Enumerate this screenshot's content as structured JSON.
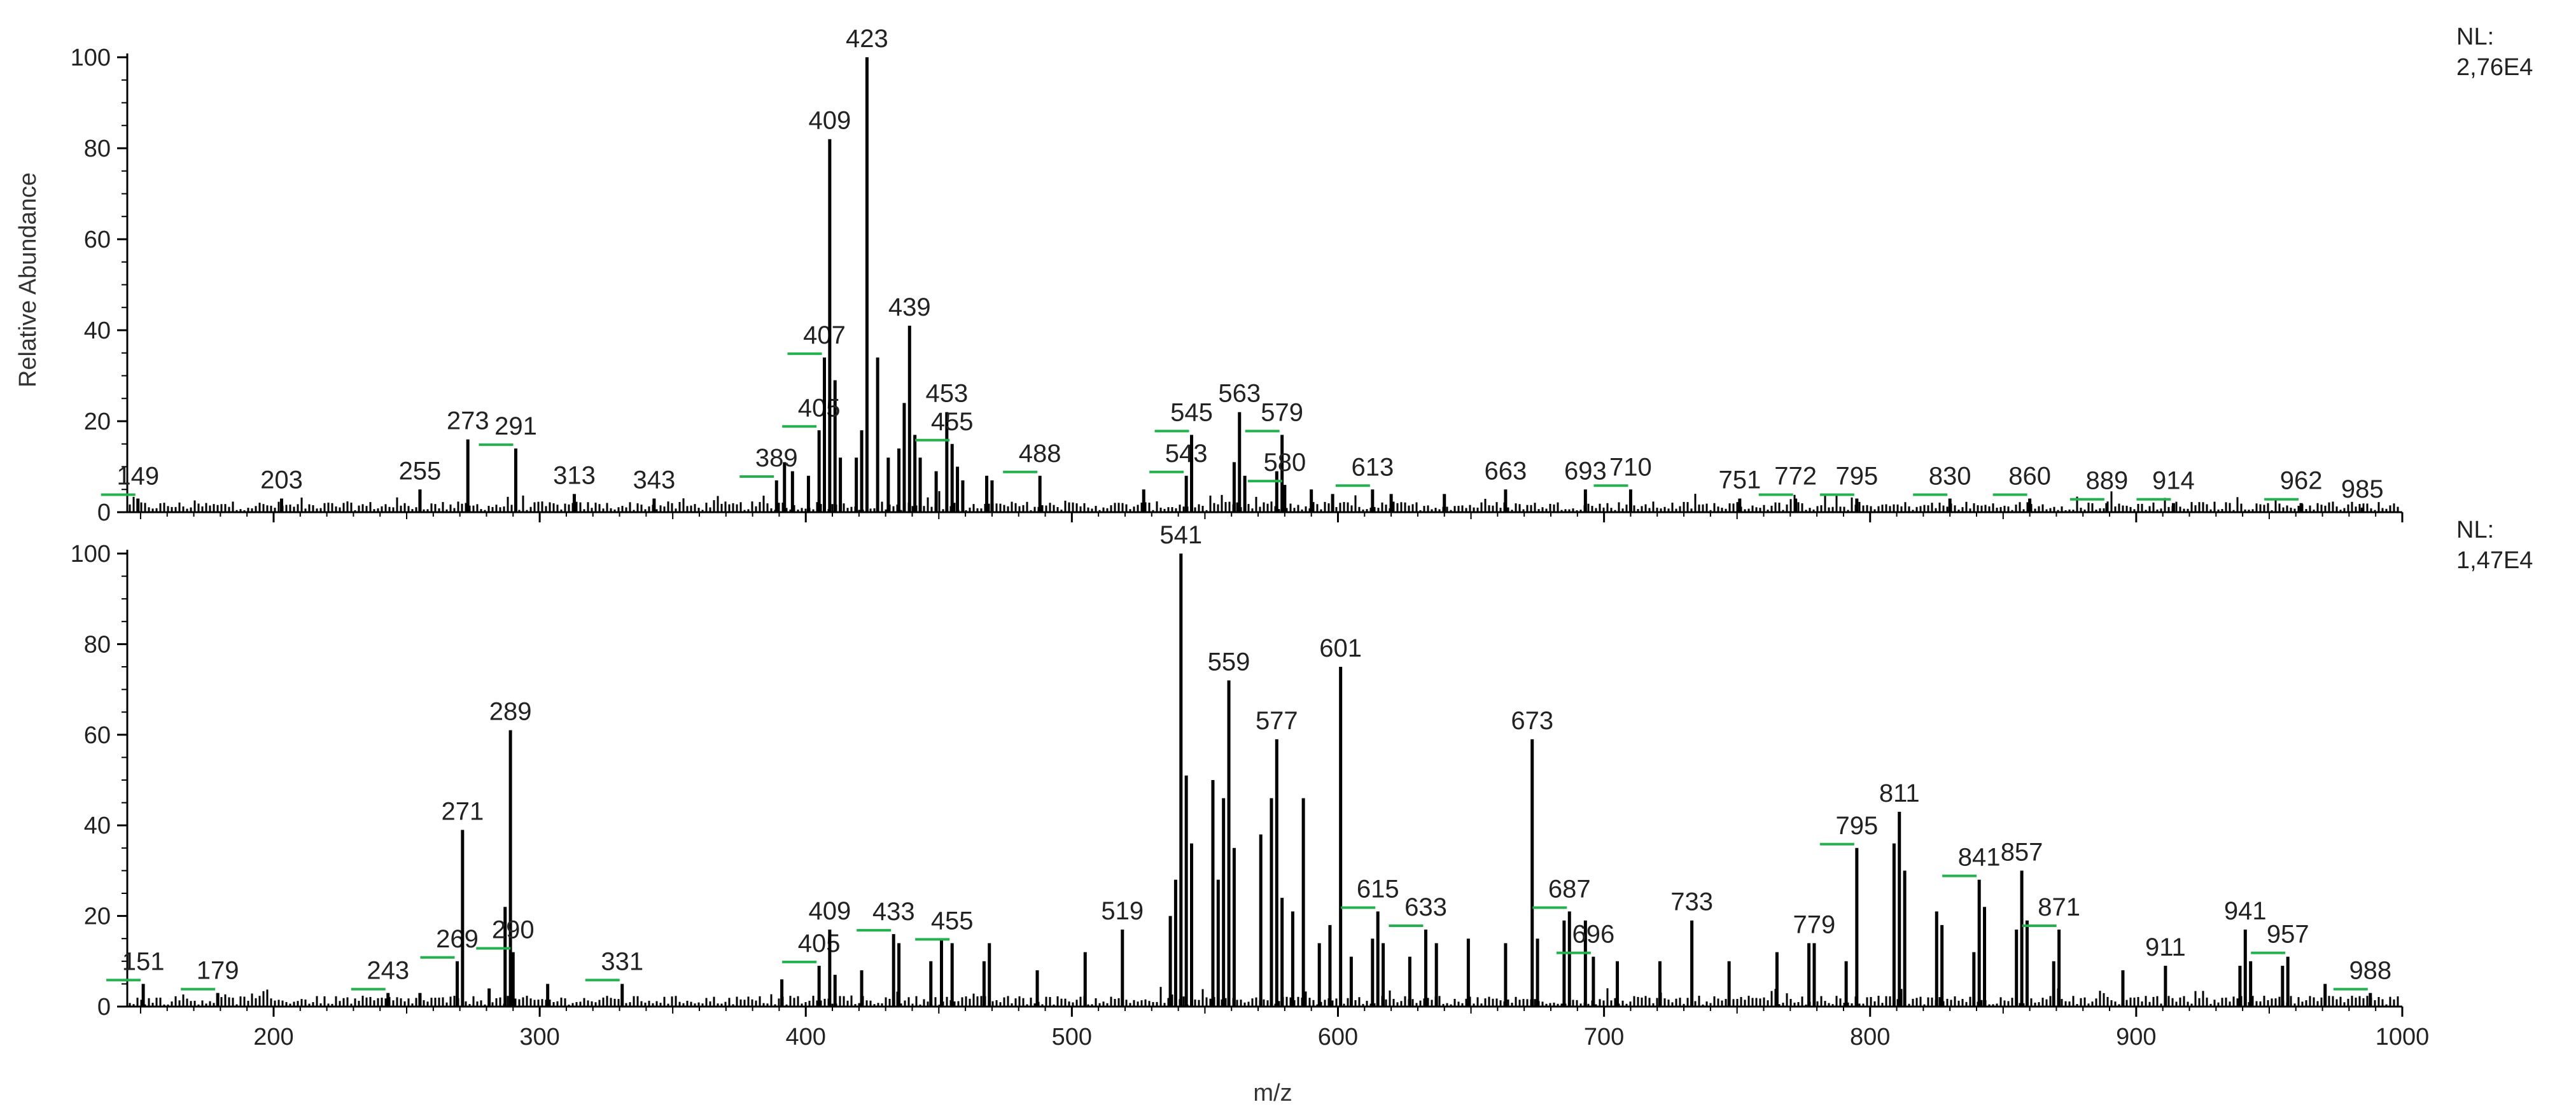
{
  "colors": {
    "sticks": "#000000",
    "label_flag": "#22b14c",
    "background": "#ffffff"
  },
  "chart_data": [
    {
      "type": "bar",
      "panel": "top",
      "ylabel": "Relative Abundance",
      "xlim": [
        145,
        1000
      ],
      "ylim": [
        0,
        100
      ],
      "nl_label": "NL:",
      "nl_value": "2,76E4",
      "y_ticks": [
        0,
        20,
        40,
        60,
        80,
        100
      ],
      "peaks": [
        {
          "x": 149,
          "y": 3,
          "label": "149",
          "flag": true
        },
        {
          "x": 203,
          "y": 3,
          "label": "203"
        },
        {
          "x": 255,
          "y": 5,
          "label": "255"
        },
        {
          "x": 273,
          "y": 16,
          "label": "273"
        },
        {
          "x": 291,
          "y": 14,
          "label": "291",
          "flag": true
        },
        {
          "x": 313,
          "y": 4,
          "label": "313"
        },
        {
          "x": 343,
          "y": 3,
          "label": "343"
        },
        {
          "x": 389,
          "y": 7,
          "label": "389",
          "flag": true
        },
        {
          "x": 405,
          "y": 18,
          "label": "405",
          "flag": true
        },
        {
          "x": 407,
          "y": 34,
          "label": "407",
          "flag": true
        },
        {
          "x": 409,
          "y": 82,
          "label": "409"
        },
        {
          "x": 423,
          "y": 100,
          "label": "423"
        },
        {
          "x": 439,
          "y": 41,
          "label": "439"
        },
        {
          "x": 453,
          "y": 22,
          "label": "453"
        },
        {
          "x": 455,
          "y": 15,
          "label": "455",
          "flag": true
        },
        {
          "x": 488,
          "y": 8,
          "label": "488",
          "flag": true
        },
        {
          "x": 543,
          "y": 8,
          "label": "543",
          "flag": true
        },
        {
          "x": 545,
          "y": 17,
          "label": "545",
          "flag": true
        },
        {
          "x": 563,
          "y": 22,
          "label": "563"
        },
        {
          "x": 579,
          "y": 17,
          "label": "579",
          "flag": true
        },
        {
          "x": 580,
          "y": 6,
          "label": "580",
          "flag": true
        },
        {
          "x": 613,
          "y": 5,
          "label": "613",
          "flag": true
        },
        {
          "x": 663,
          "y": 5,
          "label": "663"
        },
        {
          "x": 693,
          "y": 5,
          "label": "693"
        },
        {
          "x": 710,
          "y": 5,
          "label": "710",
          "flag": true
        },
        {
          "x": 751,
          "y": 3,
          "label": "751"
        },
        {
          "x": 772,
          "y": 3,
          "label": "772",
          "flag": true
        },
        {
          "x": 795,
          "y": 3,
          "label": "795",
          "flag": true
        },
        {
          "x": 830,
          "y": 3,
          "label": "830",
          "flag": true
        },
        {
          "x": 860,
          "y": 3,
          "label": "860",
          "flag": true
        },
        {
          "x": 889,
          "y": 2,
          "label": "889",
          "flag": true
        },
        {
          "x": 914,
          "y": 2,
          "label": "914",
          "flag": true
        },
        {
          "x": 962,
          "y": 2,
          "label": "962",
          "flag": true
        },
        {
          "x": 985,
          "y": 1,
          "label": "985"
        }
      ],
      "minor_peaks": [
        {
          "x": 392,
          "y": 11
        },
        {
          "x": 395,
          "y": 9
        },
        {
          "x": 401,
          "y": 8
        },
        {
          "x": 411,
          "y": 29
        },
        {
          "x": 413,
          "y": 12
        },
        {
          "x": 419,
          "y": 12
        },
        {
          "x": 421,
          "y": 18
        },
        {
          "x": 427,
          "y": 34
        },
        {
          "x": 431,
          "y": 12
        },
        {
          "x": 435,
          "y": 14
        },
        {
          "x": 437,
          "y": 24
        },
        {
          "x": 441,
          "y": 17
        },
        {
          "x": 443,
          "y": 12
        },
        {
          "x": 449,
          "y": 9
        },
        {
          "x": 457,
          "y": 10
        },
        {
          "x": 459,
          "y": 7
        },
        {
          "x": 468,
          "y": 8
        },
        {
          "x": 470,
          "y": 7
        },
        {
          "x": 527,
          "y": 5
        },
        {
          "x": 561,
          "y": 11
        },
        {
          "x": 565,
          "y": 8
        },
        {
          "x": 577,
          "y": 9
        },
        {
          "x": 590,
          "y": 5
        },
        {
          "x": 598,
          "y": 4
        },
        {
          "x": 620,
          "y": 4
        },
        {
          "x": 640,
          "y": 4
        }
      ]
    },
    {
      "type": "bar",
      "panel": "bottom",
      "xlabel": "m/z",
      "xlim": [
        145,
        1000
      ],
      "ylim": [
        0,
        100
      ],
      "nl_label": "NL:",
      "nl_value": "1,47E4",
      "x_ticks": [
        200,
        300,
        400,
        500,
        600,
        700,
        800,
        900,
        1000
      ],
      "y_ticks": [
        0,
        20,
        40,
        60,
        80,
        100
      ],
      "peaks": [
        {
          "x": 151,
          "y": 5,
          "label": "151",
          "flag": true
        },
        {
          "x": 179,
          "y": 3,
          "label": "179",
          "flag": true
        },
        {
          "x": 243,
          "y": 3,
          "label": "243",
          "flag": true
        },
        {
          "x": 269,
          "y": 10,
          "label": "269",
          "flag": true
        },
        {
          "x": 271,
          "y": 39,
          "label": "271"
        },
        {
          "x": 289,
          "y": 61,
          "label": "289"
        },
        {
          "x": 290,
          "y": 12,
          "label": "290",
          "flag": true
        },
        {
          "x": 331,
          "y": 5,
          "label": "331",
          "flag": true
        },
        {
          "x": 405,
          "y": 9,
          "label": "405",
          "flag": true
        },
        {
          "x": 409,
          "y": 17,
          "label": "409"
        },
        {
          "x": 433,
          "y": 16,
          "label": "433",
          "flag": true
        },
        {
          "x": 455,
          "y": 14,
          "label": "455",
          "flag": true
        },
        {
          "x": 519,
          "y": 17,
          "label": "519"
        },
        {
          "x": 541,
          "y": 100,
          "label": "541"
        },
        {
          "x": 559,
          "y": 72,
          "label": "559"
        },
        {
          "x": 577,
          "y": 59,
          "label": "577"
        },
        {
          "x": 601,
          "y": 75,
          "label": "601"
        },
        {
          "x": 615,
          "y": 21,
          "label": "615",
          "flag": true
        },
        {
          "x": 633,
          "y": 17,
          "label": "633",
          "flag": true
        },
        {
          "x": 673,
          "y": 59,
          "label": "673"
        },
        {
          "x": 687,
          "y": 21,
          "label": "687",
          "flag": true
        },
        {
          "x": 696,
          "y": 11,
          "label": "696",
          "flag": true
        },
        {
          "x": 733,
          "y": 19,
          "label": "733"
        },
        {
          "x": 779,
          "y": 14,
          "label": "779"
        },
        {
          "x": 795,
          "y": 35,
          "label": "795",
          "flag": true
        },
        {
          "x": 811,
          "y": 43,
          "label": "811"
        },
        {
          "x": 841,
          "y": 28,
          "label": "841",
          "flag": true
        },
        {
          "x": 857,
          "y": 30,
          "label": "857"
        },
        {
          "x": 871,
          "y": 17,
          "label": "871",
          "flag": true
        },
        {
          "x": 911,
          "y": 9,
          "label": "911"
        },
        {
          "x": 941,
          "y": 17,
          "label": "941"
        },
        {
          "x": 957,
          "y": 11,
          "label": "957",
          "flag": true
        },
        {
          "x": 988,
          "y": 3,
          "label": "988",
          "flag": true
        }
      ],
      "minor_peaks": [
        {
          "x": 255,
          "y": 3
        },
        {
          "x": 281,
          "y": 4
        },
        {
          "x": 287,
          "y": 22
        },
        {
          "x": 303,
          "y": 5
        },
        {
          "x": 391,
          "y": 6
        },
        {
          "x": 411,
          "y": 7
        },
        {
          "x": 421,
          "y": 8
        },
        {
          "x": 435,
          "y": 14
        },
        {
          "x": 447,
          "y": 10
        },
        {
          "x": 451,
          "y": 15
        },
        {
          "x": 467,
          "y": 10
        },
        {
          "x": 469,
          "y": 14
        },
        {
          "x": 487,
          "y": 8
        },
        {
          "x": 505,
          "y": 12
        },
        {
          "x": 537,
          "y": 20
        },
        {
          "x": 539,
          "y": 28
        },
        {
          "x": 543,
          "y": 51
        },
        {
          "x": 545,
          "y": 36
        },
        {
          "x": 553,
          "y": 50
        },
        {
          "x": 555,
          "y": 28
        },
        {
          "x": 557,
          "y": 46
        },
        {
          "x": 561,
          "y": 35
        },
        {
          "x": 571,
          "y": 38
        },
        {
          "x": 575,
          "y": 46
        },
        {
          "x": 579,
          "y": 24
        },
        {
          "x": 583,
          "y": 21
        },
        {
          "x": 587,
          "y": 46
        },
        {
          "x": 593,
          "y": 14
        },
        {
          "x": 597,
          "y": 18
        },
        {
          "x": 605,
          "y": 11
        },
        {
          "x": 613,
          "y": 15
        },
        {
          "x": 617,
          "y": 14
        },
        {
          "x": 627,
          "y": 11
        },
        {
          "x": 637,
          "y": 14
        },
        {
          "x": 649,
          "y": 15
        },
        {
          "x": 663,
          "y": 14
        },
        {
          "x": 675,
          "y": 15
        },
        {
          "x": 685,
          "y": 19
        },
        {
          "x": 693,
          "y": 19
        },
        {
          "x": 705,
          "y": 10
        },
        {
          "x": 721,
          "y": 10
        },
        {
          "x": 747,
          "y": 10
        },
        {
          "x": 765,
          "y": 12
        },
        {
          "x": 777,
          "y": 14
        },
        {
          "x": 791,
          "y": 10
        },
        {
          "x": 809,
          "y": 36
        },
        {
          "x": 813,
          "y": 30
        },
        {
          "x": 825,
          "y": 21
        },
        {
          "x": 827,
          "y": 18
        },
        {
          "x": 839,
          "y": 12
        },
        {
          "x": 843,
          "y": 22
        },
        {
          "x": 855,
          "y": 17
        },
        {
          "x": 859,
          "y": 19
        },
        {
          "x": 869,
          "y": 10
        },
        {
          "x": 895,
          "y": 8
        },
        {
          "x": 939,
          "y": 9
        },
        {
          "x": 943,
          "y": 10
        },
        {
          "x": 955,
          "y": 9
        },
        {
          "x": 971,
          "y": 5
        }
      ]
    }
  ]
}
